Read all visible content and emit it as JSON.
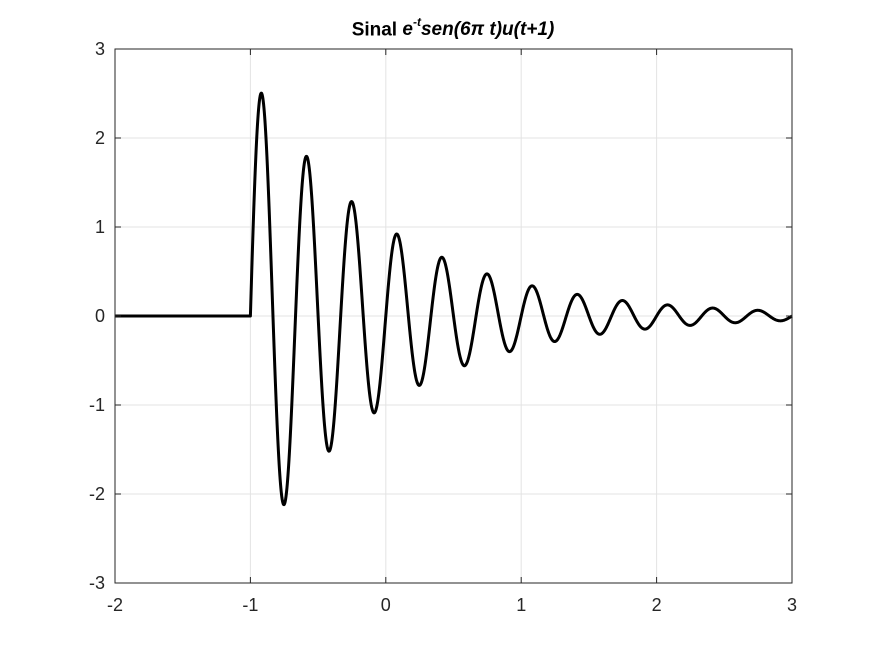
{
  "chart_data": {
    "type": "line",
    "title_plain": "Sinal",
    "title_expr_base": "e",
    "title_expr_sup": "-t",
    "title_expr_rest": "sen(6π t)u(t+1)",
    "xlabel": "",
    "ylabel": "",
    "xlim": [
      -2,
      3
    ],
    "ylim": [
      -3,
      3
    ],
    "x_ticks": [
      -2,
      -1,
      0,
      1,
      2,
      3
    ],
    "y_ticks": [
      -3,
      -2,
      -1,
      0,
      1,
      2,
      3
    ],
    "x_tick_labels": [
      "-2",
      "-1",
      "0",
      "1",
      "2",
      "3"
    ],
    "y_tick_labels": [
      "-3",
      "-2",
      "-1",
      "0",
      "1",
      "2",
      "3"
    ],
    "grid": true,
    "series": [
      {
        "function": "exp(-t)*sin(6*pi*t)*u(t+1)",
        "x_start": -2,
        "x_end": 3,
        "samples": 2001,
        "color": "#000000"
      }
    ]
  }
}
